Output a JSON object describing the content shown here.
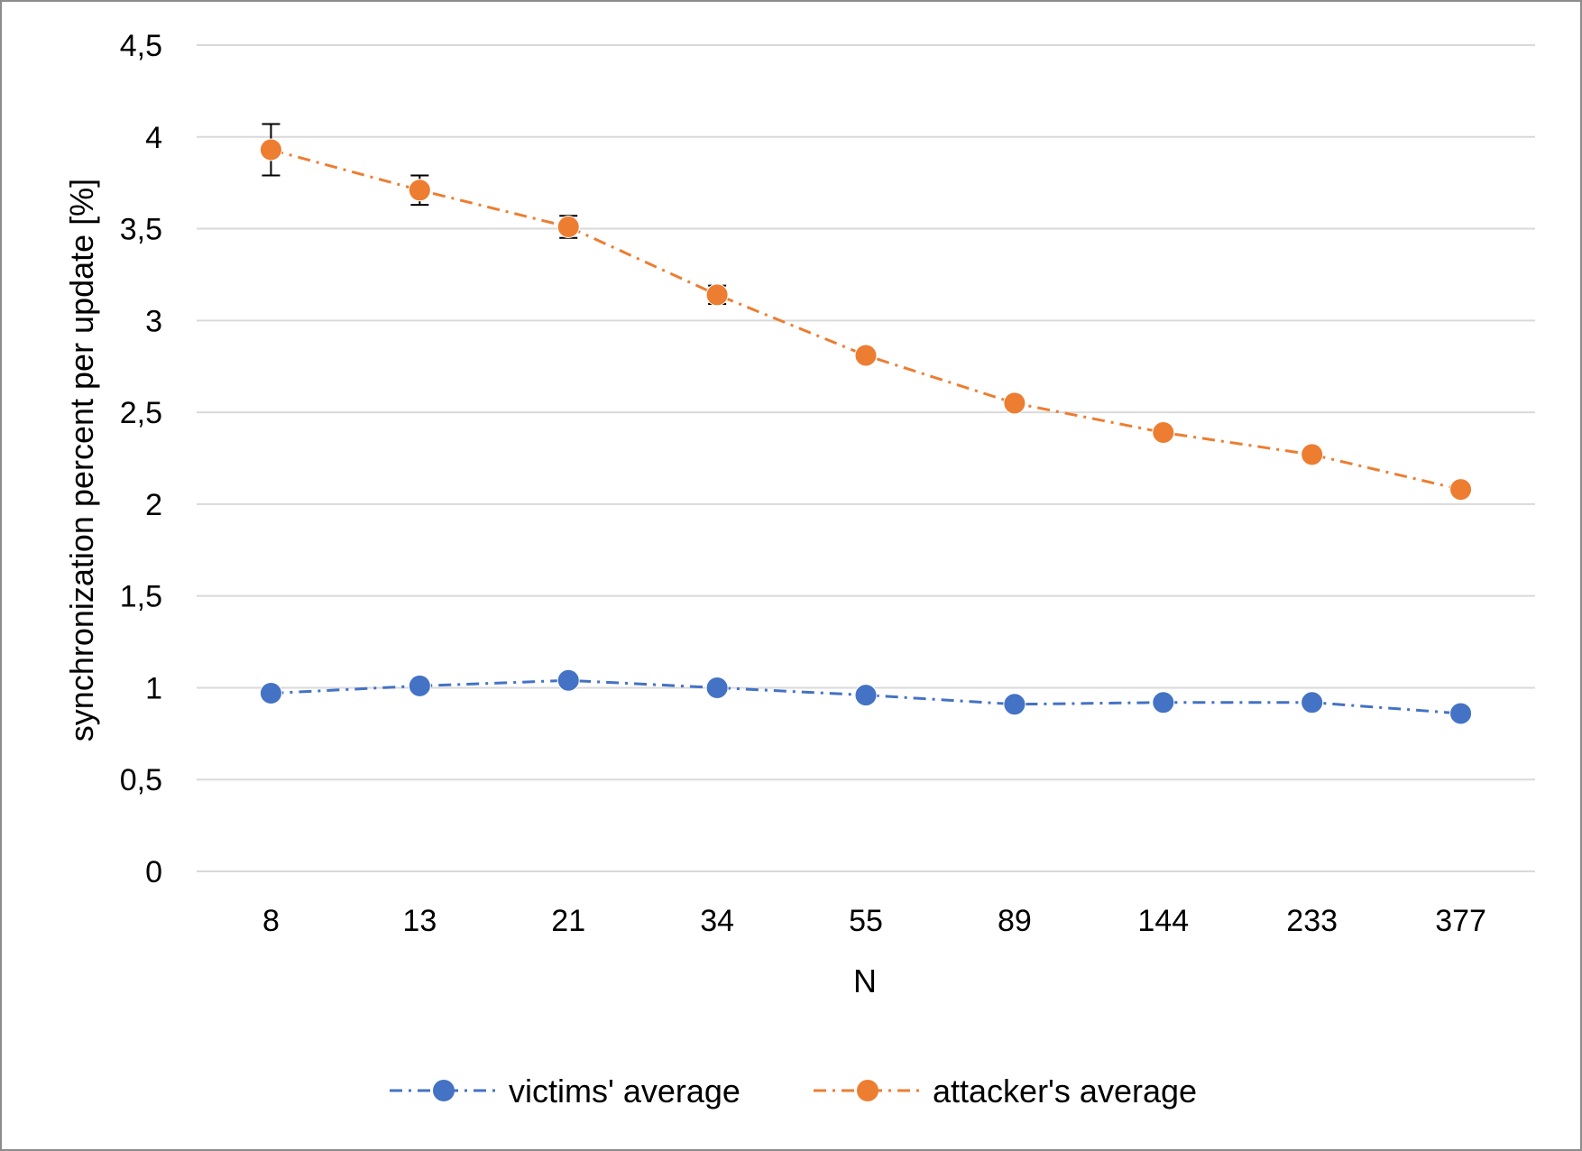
{
  "chart_data": {
    "type": "line",
    "title": "",
    "xlabel": "N",
    "ylabel": "synchronization percent per update [%]",
    "categories": [
      "8",
      "13",
      "21",
      "34",
      "55",
      "89",
      "144",
      "233",
      "377"
    ],
    "y_ticks": [
      "0",
      "0,5",
      "1",
      "1,5",
      "2",
      "2,5",
      "3",
      "3,5",
      "4",
      "4,5"
    ],
    "ylim": [
      0,
      4.5
    ],
    "y_step": 0.5,
    "grid": "horizontal",
    "legend_position": "bottom",
    "series": [
      {
        "name": "victims' average",
        "color": "#4472C4",
        "line_style": "dash-dot",
        "marker": "circle",
        "values": [
          0.97,
          1.01,
          1.04,
          1.0,
          0.96,
          0.91,
          0.92,
          0.92,
          0.86
        ]
      },
      {
        "name": "attacker's average",
        "color": "#ED7D31",
        "line_style": "dash-dot",
        "marker": "circle",
        "values": [
          3.93,
          3.71,
          3.51,
          3.14,
          2.81,
          2.55,
          2.39,
          2.27,
          2.08
        ],
        "error": [
          0.14,
          0.08,
          0.06,
          0.05,
          0.02,
          0.01,
          0.01,
          0.01,
          0.01
        ]
      }
    ]
  }
}
